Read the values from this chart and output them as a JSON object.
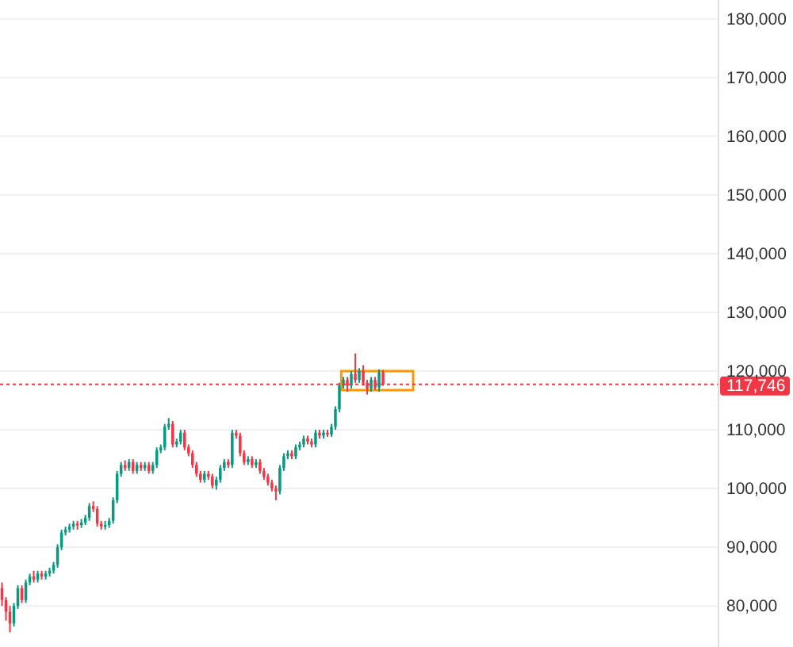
{
  "chart_data": {
    "type": "candlestick",
    "categories": [
      null,
      null,
      null,
      null,
      null,
      null,
      null,
      null,
      null,
      null,
      null,
      null,
      null,
      null,
      null,
      null,
      null,
      null,
      null,
      null,
      null,
      null,
      null,
      null,
      null,
      null,
      null,
      null,
      null,
      null,
      null,
      null,
      null,
      null,
      null,
      null,
      null,
      null,
      null,
      null,
      null,
      null,
      null,
      null,
      null,
      null,
      null,
      null,
      null,
      null,
      null,
      null,
      null,
      null,
      null,
      null,
      null,
      null,
      null,
      null,
      null,
      null,
      null,
      null,
      null,
      null,
      null,
      null,
      null,
      null,
      null,
      null,
      null,
      null,
      null,
      null,
      null,
      null,
      null,
      null,
      null,
      null,
      null,
      null,
      null,
      null,
      null,
      null,
      null,
      null,
      null,
      null,
      null,
      null,
      null,
      null,
      null,
      null,
      null,
      null,
      null,
      null,
      null,
      null,
      null,
      null,
      null,
      null,
      null,
      null,
      null,
      null,
      null,
      null,
      null,
      null,
      null,
      null,
      null,
      null,
      null,
      null,
      null,
      null,
      null,
      null,
      null,
      null,
      null,
      null,
      null,
      null,
      null,
      null,
      null,
      null,
      null,
      null,
      null,
      null,
      null,
      null,
      null,
      null,
      null,
      null,
      null,
      null,
      null,
      null,
      null,
      null,
      null,
      null,
      null,
      null,
      null,
      null,
      null,
      null,
      null,
      null,
      null,
      null,
      null,
      null,
      null,
      null,
      null,
      null,
      null,
      null,
      null,
      null,
      null,
      null,
      null,
      null,
      null,
      null,
      null
    ],
    "ohlc": [
      [
        83000,
        84000,
        80000,
        81000
      ],
      [
        81000,
        81500,
        77500,
        79000
      ],
      [
        79000,
        80000,
        75500,
        77000
      ],
      [
        77000,
        80500,
        76500,
        80000
      ],
      [
        80000,
        83500,
        79500,
        83000
      ],
      [
        83000,
        83500,
        80500,
        81000
      ],
      [
        81000,
        84500,
        80500,
        84000
      ],
      [
        84000,
        85500,
        83500,
        85000
      ],
      [
        85000,
        86000,
        84000,
        84500
      ],
      [
        84500,
        86000,
        84000,
        85500
      ],
      [
        85500,
        86000,
        84500,
        85000
      ],
      [
        85000,
        86000,
        84500,
        85500
      ],
      [
        85500,
        86500,
        85000,
        86000
      ],
      [
        86000,
        87500,
        85500,
        87000
      ],
      [
        87000,
        90500,
        86500,
        90000
      ],
      [
        90000,
        93000,
        89500,
        92500
      ],
      [
        92500,
        93500,
        92000,
        93000
      ],
      [
        93000,
        94000,
        92500,
        93500
      ],
      [
        93500,
        94500,
        93000,
        94000
      ],
      [
        94000,
        94500,
        93000,
        93800
      ],
      [
        93800,
        94800,
        93300,
        94200
      ],
      [
        94200,
        95500,
        93800,
        95000
      ],
      [
        95000,
        97500,
        94500,
        97000
      ],
      [
        97000,
        97800,
        96000,
        96500
      ],
      [
        96500,
        97000,
        93500,
        94000
      ],
      [
        94000,
        94500,
        93000,
        93500
      ],
      [
        93500,
        94500,
        93000,
        93800
      ],
      [
        93800,
        95000,
        93300,
        94500
      ],
      [
        94500,
        98500,
        94000,
        98000
      ],
      [
        98000,
        103000,
        97500,
        102500
      ],
      [
        102500,
        104500,
        102000,
        104000
      ],
      [
        104000,
        104800,
        103000,
        103500
      ],
      [
        103500,
        105000,
        103000,
        104500
      ],
      [
        104500,
        105000,
        102500,
        103000
      ],
      [
        103000,
        104500,
        102500,
        104000
      ],
      [
        104000,
        104500,
        103000,
        103500
      ],
      [
        103500,
        104500,
        103000,
        104000
      ],
      [
        104000,
        104500,
        102500,
        103000
      ],
      [
        103000,
        104500,
        102500,
        104000
      ],
      [
        104000,
        107000,
        103500,
        106500
      ],
      [
        106500,
        107500,
        106000,
        107000
      ],
      [
        107000,
        111000,
        106500,
        110500
      ],
      [
        110500,
        112000,
        110000,
        111000
      ],
      [
        111000,
        111500,
        107000,
        107500
      ],
      [
        107500,
        108500,
        107000,
        108000
      ],
      [
        108000,
        110000,
        107500,
        109500
      ],
      [
        109500,
        110000,
        106500,
        107000
      ],
      [
        107000,
        107500,
        105500,
        106000
      ],
      [
        106000,
        106500,
        103500,
        104000
      ],
      [
        104000,
        104500,
        102000,
        102500
      ],
      [
        102500,
        103000,
        101000,
        101500
      ],
      [
        101500,
        103000,
        101000,
        102500
      ],
      [
        102500,
        103000,
        101500,
        102000
      ],
      [
        102000,
        102500,
        100000,
        100500
      ],
      [
        100500,
        102000,
        99800,
        101500
      ],
      [
        101500,
        104000,
        101000,
        103500
      ],
      [
        103500,
        105000,
        103000,
        104500
      ],
      [
        104500,
        105000,
        103500,
        104000
      ],
      [
        104000,
        110000,
        103500,
        109500
      ],
      [
        109500,
        110000,
        108500,
        109000
      ],
      [
        109000,
        109500,
        105500,
        106000
      ],
      [
        106000,
        106500,
        104000,
        104500
      ],
      [
        104500,
        105500,
        104000,
        105000
      ],
      [
        105000,
        105500,
        103500,
        104000
      ],
      [
        104000,
        105000,
        103500,
        104500
      ],
      [
        104500,
        105000,
        102500,
        103000
      ],
      [
        103000,
        103500,
        101500,
        102000
      ],
      [
        102000,
        102500,
        100500,
        101000
      ],
      [
        101000,
        101500,
        99500,
        100000
      ],
      [
        100000,
        100500,
        98000,
        99500
      ],
      [
        99500,
        104000,
        99000,
        103500
      ],
      [
        103500,
        106000,
        103000,
        105500
      ],
      [
        105500,
        106500,
        105000,
        106000
      ],
      [
        106000,
        106500,
        105000,
        105500
      ],
      [
        105500,
        107500,
        105000,
        107000
      ],
      [
        107000,
        108000,
        106500,
        107500
      ],
      [
        107500,
        109000,
        107000,
        108500
      ],
      [
        108500,
        109000,
        107500,
        108000
      ],
      [
        108000,
        108500,
        107000,
        107500
      ],
      [
        107500,
        110000,
        107000,
        109500
      ],
      [
        109500,
        110000,
        108500,
        109000
      ],
      [
        109000,
        110000,
        108500,
        109500
      ],
      [
        109500,
        110000,
        108800,
        109200
      ],
      [
        109200,
        111000,
        108800,
        110500
      ],
      [
        110500,
        114000,
        110000,
        113500
      ],
      [
        113500,
        118000,
        113000,
        117500
      ],
      [
        117500,
        119000,
        117000,
        118500
      ],
      [
        118500,
        119000,
        116500,
        117500
      ],
      [
        117500,
        120000,
        117000,
        119500
      ],
      [
        119500,
        123000,
        118000,
        118500
      ],
      [
        118500,
        120500,
        118000,
        120000
      ],
      [
        120000,
        121000,
        117500,
        118000
      ],
      [
        118000,
        118500,
        116000,
        117000
      ],
      [
        117000,
        119000,
        116500,
        118500
      ],
      [
        118500,
        119000,
        116800,
        117200
      ],
      [
        117200,
        120300,
        116500,
        119800
      ],
      [
        119800,
        120200,
        117500,
        117746
      ],
      null,
      null,
      null,
      null,
      null,
      null,
      null,
      null,
      null,
      null,
      null,
      null,
      null,
      null,
      null,
      null,
      null,
      null,
      null,
      null,
      null,
      null,
      null,
      null,
      null,
      null,
      null,
      null,
      null,
      null,
      null,
      null,
      null,
      null,
      null,
      null,
      null,
      null,
      null,
      null,
      null,
      null,
      null,
      null,
      null,
      null,
      null,
      null,
      null,
      null,
      null,
      null,
      null,
      null,
      null,
      null,
      null,
      null,
      null,
      null,
      null,
      null,
      null,
      null,
      null,
      null,
      null,
      null,
      null,
      null,
      null,
      null,
      null,
      null,
      null,
      null,
      null,
      null,
      null,
      null,
      null,
      null,
      null,
      null
    ],
    "ylim": [
      73000,
      183200
    ],
    "yticks": [
      {
        "value": 80000,
        "label": "80,000"
      },
      {
        "value": 90000,
        "label": "90,000"
      },
      {
        "value": 100000,
        "label": "100,000"
      },
      {
        "value": 110000,
        "label": "110,000"
      },
      {
        "value": 120000,
        "label": "120,000"
      },
      {
        "value": 130000,
        "label": "130,000"
      },
      {
        "value": 140000,
        "label": "140,000"
      },
      {
        "value": 150000,
        "label": "150,000"
      },
      {
        "value": 160000,
        "label": "160,000"
      },
      {
        "value": 170000,
        "label": "170,000"
      },
      {
        "value": 180000,
        "label": "180,000"
      }
    ],
    "tick_labels": "y",
    "grid": "y",
    "ref_lines": [
      {
        "axis": "y",
        "value": 117746,
        "label": "117,746",
        "color": "#f23645",
        "line_style": "dotted"
      }
    ]
  }
}
